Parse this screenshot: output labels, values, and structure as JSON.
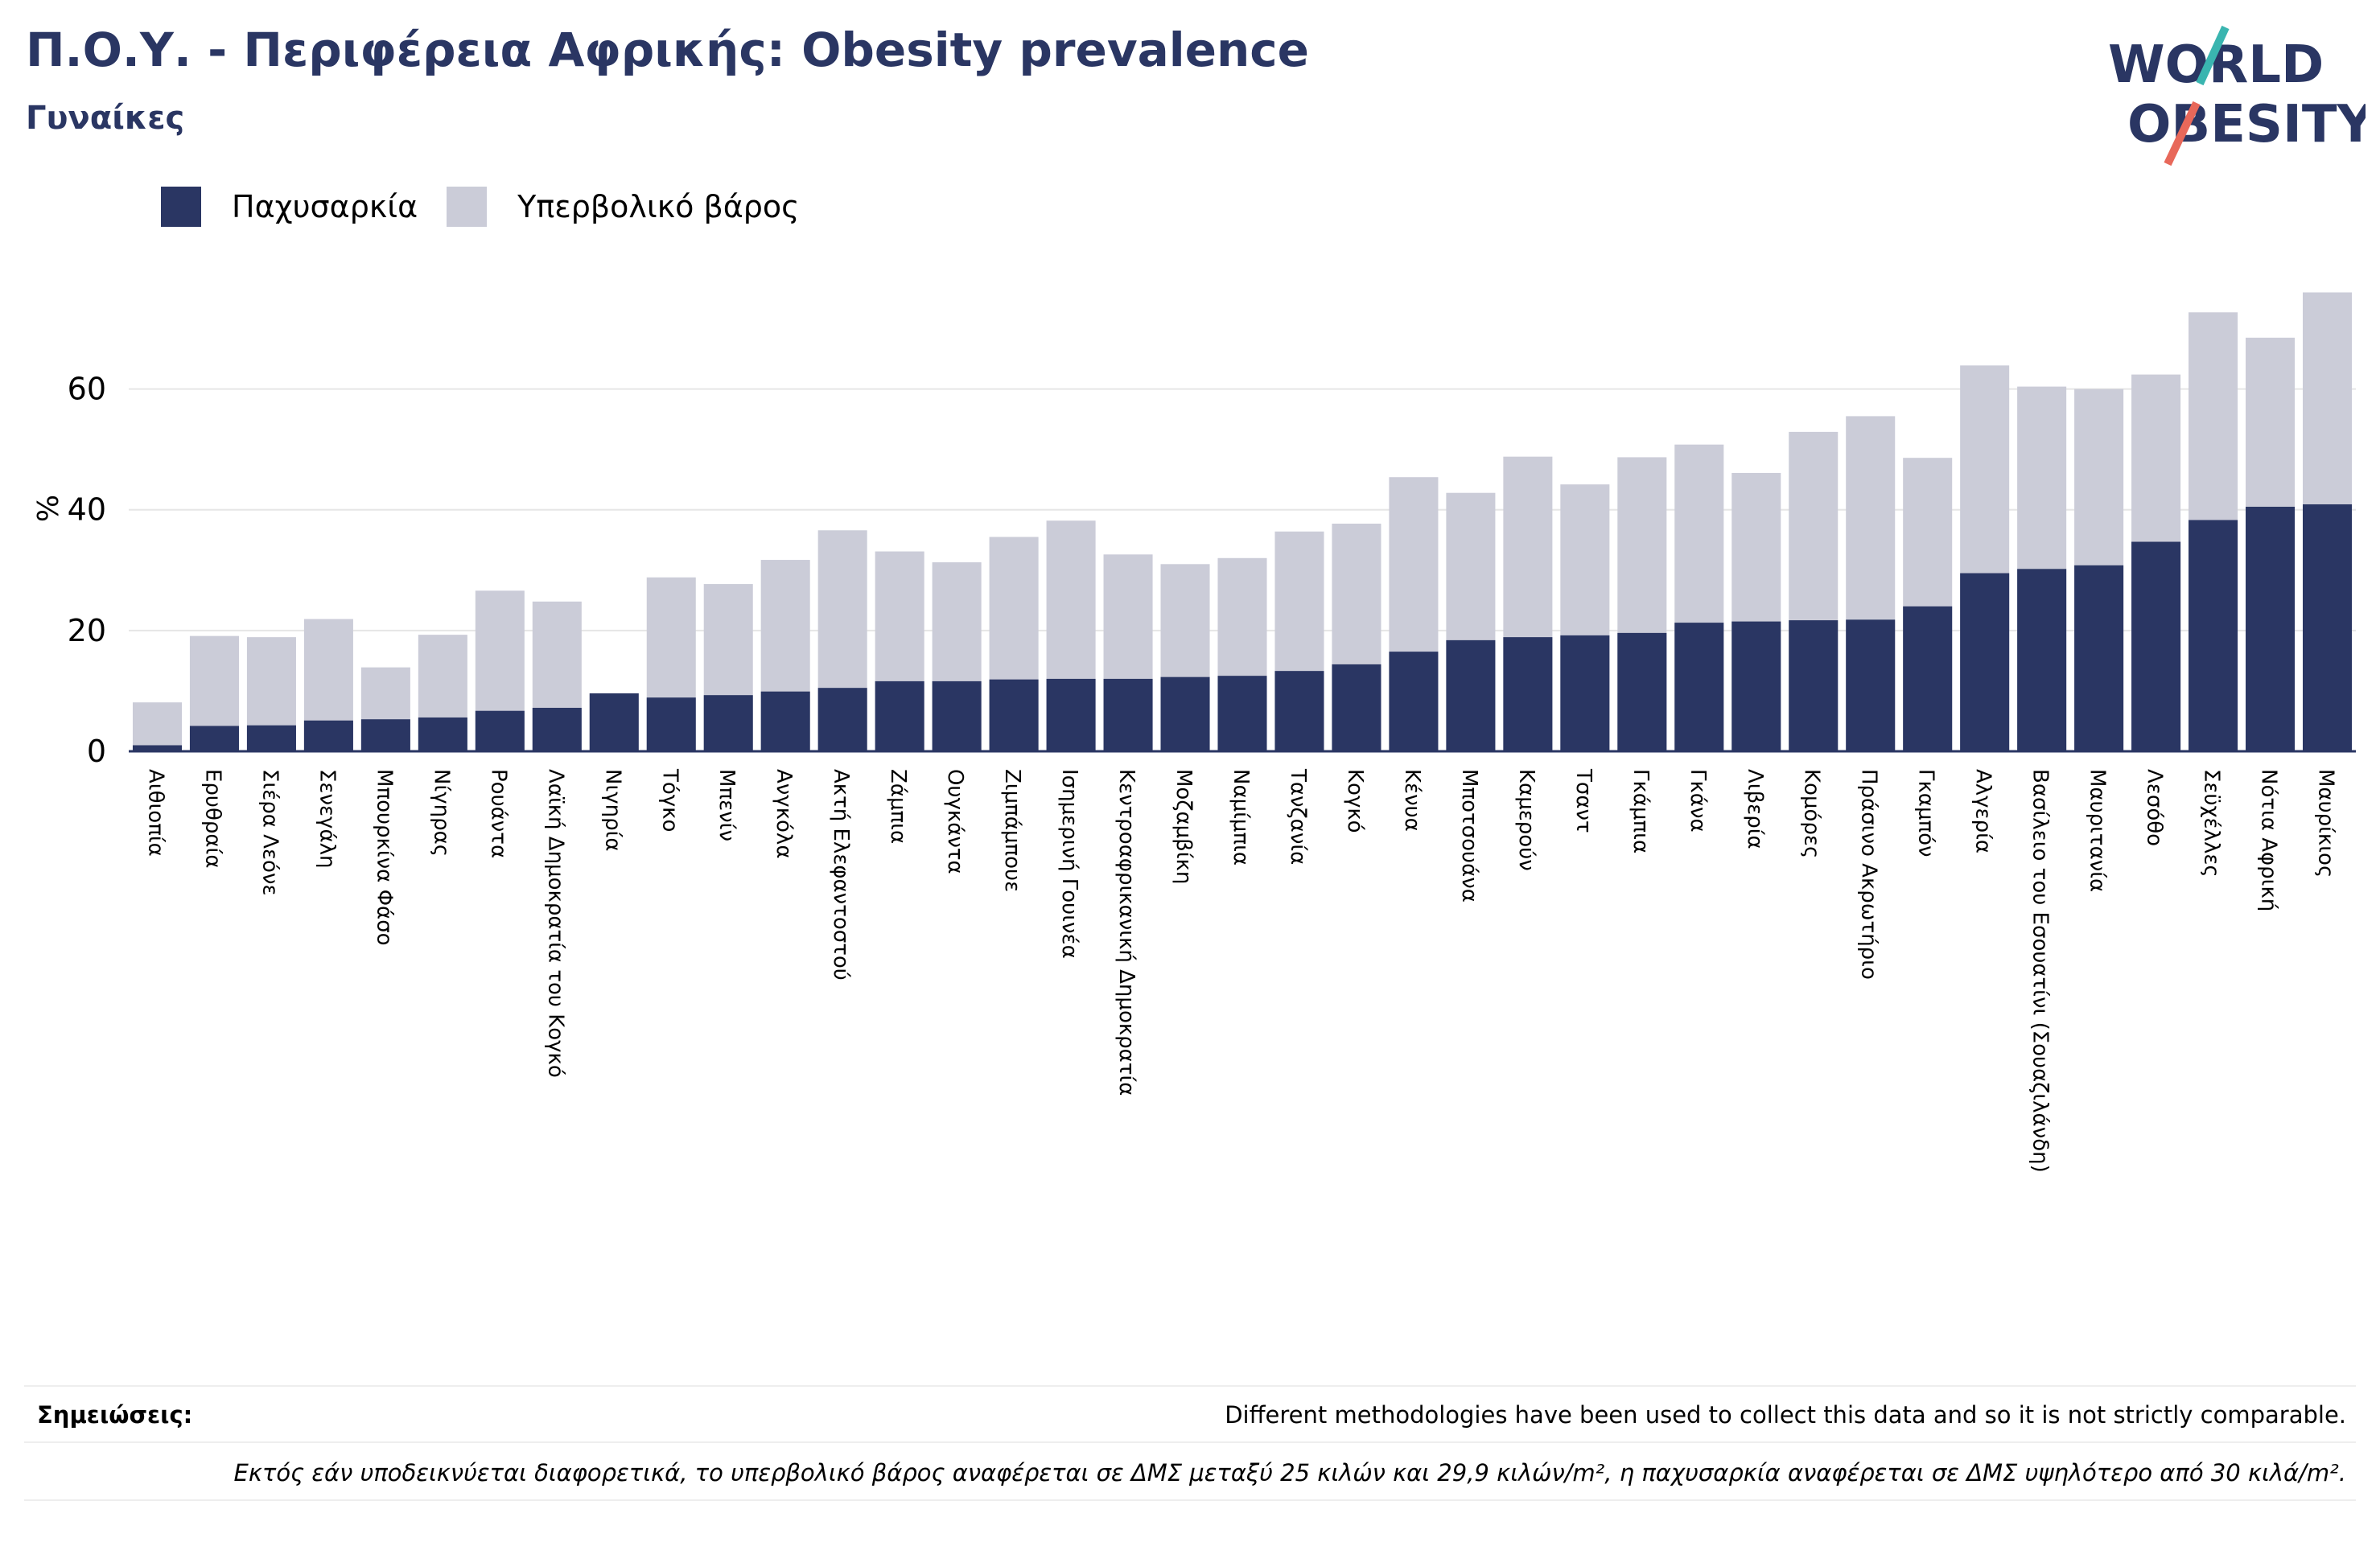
{
  "header": {
    "title": "Π.Ο.Υ. - Περιφέρεια Αφρικής: Obesity prevalence",
    "subtitle": "Γυναίκες"
  },
  "logo": {
    "line1": "WORLD",
    "line2": "OBESITY",
    "color": "#2a3663",
    "slash_colors": [
      "#3ab5b0",
      "#e8685a"
    ]
  },
  "legend": [
    {
      "label": "Παχυσαρκία",
      "color": "#2a3663"
    },
    {
      "label": "Υπερβολικό βάρος",
      "color": "#cbccd8"
    }
  ],
  "notes": {
    "label": "Σημειώσεις:",
    "text": "Different methodologies have been used to collect this data and so it is not strictly comparable.",
    "footer": "Εκτός εάν υποδεικνύεται διαφορετικά, το υπερβολικό βάρος αναφέρεται σε ΔΜΣ μεταξύ 25 κιλών και 29,9 κιλών/m², η παχυσαρκία αναφέρεται σε ΔΜΣ υψηλότερο από 30 κιλά/m²."
  },
  "chart_data": {
    "type": "bar",
    "stacking": "overlay",
    "title": "",
    "xlabel": "",
    "ylabel": "%",
    "ylim": [
      0,
      77
    ],
    "yticks": [
      0,
      20,
      40,
      60
    ],
    "grid": true,
    "legend_position": "top-left",
    "categories": [
      "Αιθιοπία",
      "Ερυθραία",
      "Σιέρα Λεόνε",
      "Σενεγάλη",
      "Μπουρκίνα Φάσο",
      "Νίγηρας",
      "Ρουάντα",
      "Λαϊκή Δημοκρατία του Κογκό",
      "Νιγηρία",
      "Τόγκο",
      "Μπενίν",
      "Ανγκόλα",
      "Ακτή Ελεφαντοστού",
      "Ζάμπια",
      "Ουγκάντα",
      "Ζιμπάμπουε",
      "Ισημερινή Γουινέα",
      "Κεντροαφρικανική Δημοκρατία",
      "Μοζαμβίκη",
      "Ναμίμπια",
      "Τανζανία",
      "Κογκό",
      "Κένυα",
      "Μποτσουάνα",
      "Καμερούν",
      "Τσαντ",
      "Γκάμπια",
      "Γκάνα",
      "Λιβερία",
      "Κομόρες",
      "Πράσινο Ακρωτήριο",
      "Γκαμπόν",
      "Αλγερία",
      "Βασίλειο του Εσουατίνι (Σουαζιλάνδη)",
      "Μαυριτανία",
      "Λεσόθο",
      "Σεϋχέλλες",
      "Νότια Αφρική",
      "Μαυρίκιος"
    ],
    "series": [
      {
        "name": "Υπερβολικό βάρος",
        "color": "#cbccd8",
        "values": [
          8.1,
          19.1,
          18.9,
          21.9,
          13.9,
          19.3,
          26.6,
          24.8,
          9.6,
          28.8,
          27.7,
          31.7,
          36.6,
          33.1,
          31.3,
          35.5,
          38.2,
          32.6,
          31.0,
          32.0,
          36.4,
          37.7,
          45.4,
          42.8,
          48.8,
          44.2,
          48.7,
          50.8,
          46.1,
          52.9,
          55.5,
          48.6,
          63.9,
          60.4,
          60.0,
          62.4,
          72.7,
          68.5,
          76.0
        ]
      },
      {
        "name": "Παχυσαρκία",
        "color": "#2a3663",
        "values": [
          1.0,
          4.2,
          4.3,
          5.1,
          5.3,
          5.6,
          6.7,
          7.2,
          9.6,
          8.9,
          9.3,
          9.9,
          10.5,
          11.6,
          11.6,
          11.9,
          12.0,
          12.0,
          12.3,
          12.5,
          13.3,
          14.4,
          16.5,
          18.4,
          18.9,
          19.2,
          19.6,
          21.3,
          21.5,
          21.7,
          21.8,
          24.0,
          29.5,
          30.2,
          30.8,
          34.7,
          38.3,
          40.5,
          40.9
        ]
      }
    ]
  }
}
